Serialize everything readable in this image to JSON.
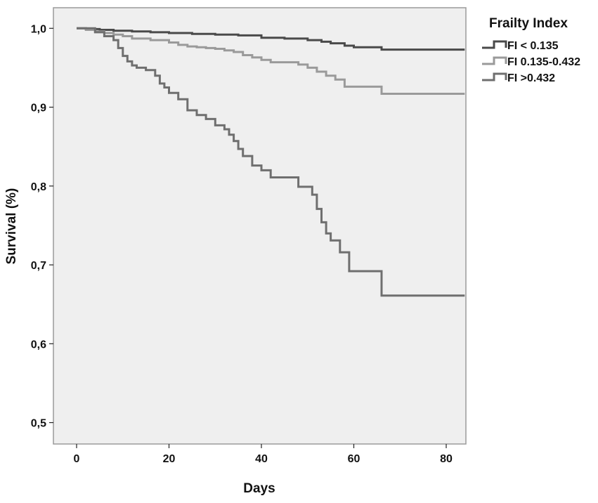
{
  "chart_data": {
    "type": "line",
    "subtype": "kaplan-meier step",
    "xlabel": "Days",
    "ylabel": "Survival (%)",
    "xlim": [
      0,
      84
    ],
    "ylim": [
      0.485,
      1.022
    ],
    "x_ticks": [
      0,
      20,
      40,
      60,
      80
    ],
    "x_tick_labels": [
      "0",
      "20",
      "40",
      "60",
      "80"
    ],
    "y_ticks": [
      0.5,
      0.6,
      0.7,
      0.8,
      0.9,
      1.0
    ],
    "y_tick_labels": [
      "0,5",
      "0,6",
      "0,7",
      "0,8",
      "0,9",
      "1,0"
    ],
    "grid": false,
    "plot_background": "#efefef",
    "legend": {
      "title": "Frailty Index",
      "placement": "outside-top-right"
    },
    "series": [
      {
        "name": "FI < 0.135",
        "color": "#4a4a4a",
        "x": [
          0,
          2,
          5,
          8,
          12,
          16,
          20,
          25,
          30,
          35,
          40,
          45,
          50,
          53,
          55,
          58,
          60,
          66,
          84
        ],
        "y": [
          1.0,
          0.999,
          0.998,
          0.997,
          0.996,
          0.995,
          0.994,
          0.993,
          0.992,
          0.991,
          0.988,
          0.987,
          0.985,
          0.983,
          0.981,
          0.978,
          0.976,
          0.973,
          0.973
        ]
      },
      {
        "name": "FI 0.135-0.432",
        "color": "#9a9a9a",
        "x": [
          0,
          2,
          4,
          6,
          8,
          10,
          12,
          16,
          20,
          22,
          24,
          26,
          28,
          30,
          32,
          34,
          36,
          38,
          40,
          42,
          48,
          50,
          52,
          54,
          56,
          58,
          66,
          84
        ],
        "y": [
          1.0,
          0.998,
          0.996,
          0.994,
          0.992,
          0.99,
          0.987,
          0.985,
          0.982,
          0.979,
          0.977,
          0.976,
          0.975,
          0.974,
          0.972,
          0.97,
          0.966,
          0.963,
          0.96,
          0.957,
          0.954,
          0.95,
          0.945,
          0.94,
          0.935,
          0.926,
          0.917,
          0.917
        ]
      },
      {
        "name": "FI >0.432",
        "color": "#6f6f6f",
        "x": [
          0,
          4,
          6,
          8,
          9,
          10,
          11,
          12,
          13,
          15,
          17,
          18,
          19,
          20,
          22,
          24,
          26,
          28,
          30,
          32,
          33,
          34,
          35,
          36,
          38,
          40,
          42,
          48,
          51,
          52,
          53,
          54,
          55,
          57,
          59,
          66,
          84
        ],
        "y": [
          1.0,
          0.995,
          0.99,
          0.985,
          0.975,
          0.965,
          0.958,
          0.953,
          0.95,
          0.947,
          0.94,
          0.93,
          0.925,
          0.918,
          0.91,
          0.896,
          0.89,
          0.885,
          0.877,
          0.872,
          0.865,
          0.857,
          0.847,
          0.838,
          0.826,
          0.82,
          0.811,
          0.799,
          0.789,
          0.771,
          0.754,
          0.74,
          0.731,
          0.716,
          0.692,
          0.661,
          0.661
        ]
      }
    ]
  }
}
